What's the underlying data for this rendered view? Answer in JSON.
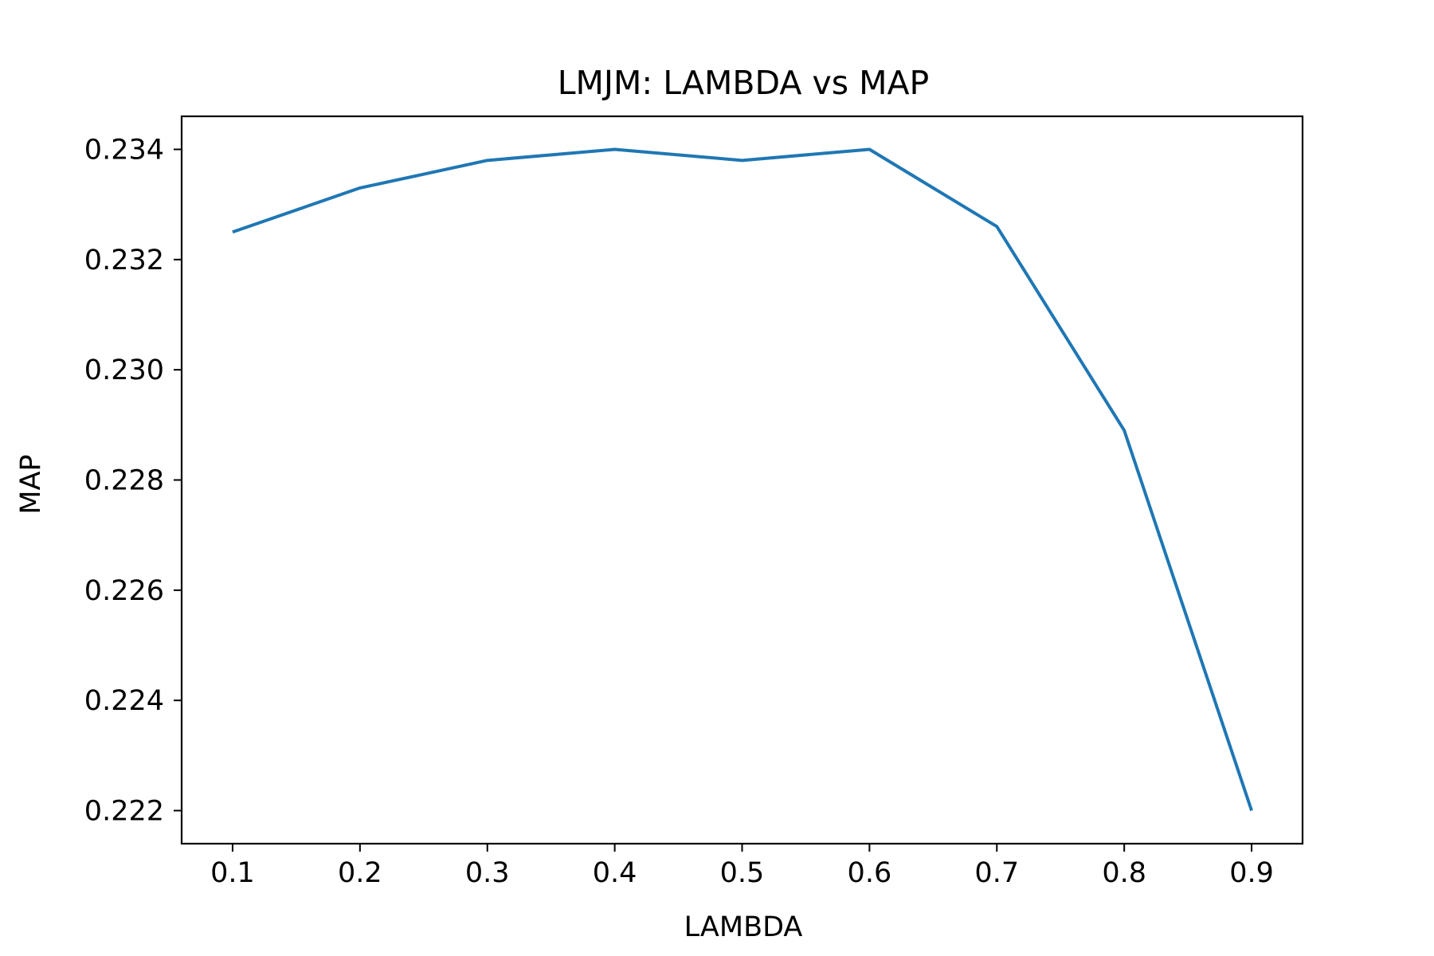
{
  "chart_data": {
    "type": "line",
    "title": "LMJM: LAMBDA vs MAP",
    "xlabel": "LAMBDA",
    "ylabel": "MAP",
    "xlim": [
      0.06,
      0.94
    ],
    "ylim": [
      0.2214,
      0.2346
    ],
    "xticks": [
      "0.1",
      "0.2",
      "0.3",
      "0.4",
      "0.5",
      "0.6",
      "0.7",
      "0.8",
      "0.9"
    ],
    "yticks": [
      "0.222",
      "0.224",
      "0.226",
      "0.228",
      "0.230",
      "0.232",
      "0.234"
    ],
    "grid": false,
    "legend": "none",
    "series": [
      {
        "color": "#1f77b4",
        "x": [
          0.1,
          0.2,
          0.3,
          0.4,
          0.5,
          0.6,
          0.7,
          0.8,
          0.9
        ],
        "y": [
          0.2325,
          0.2333,
          0.2338,
          0.234,
          0.2338,
          0.234,
          0.2326,
          0.2289,
          0.222
        ]
      }
    ]
  }
}
